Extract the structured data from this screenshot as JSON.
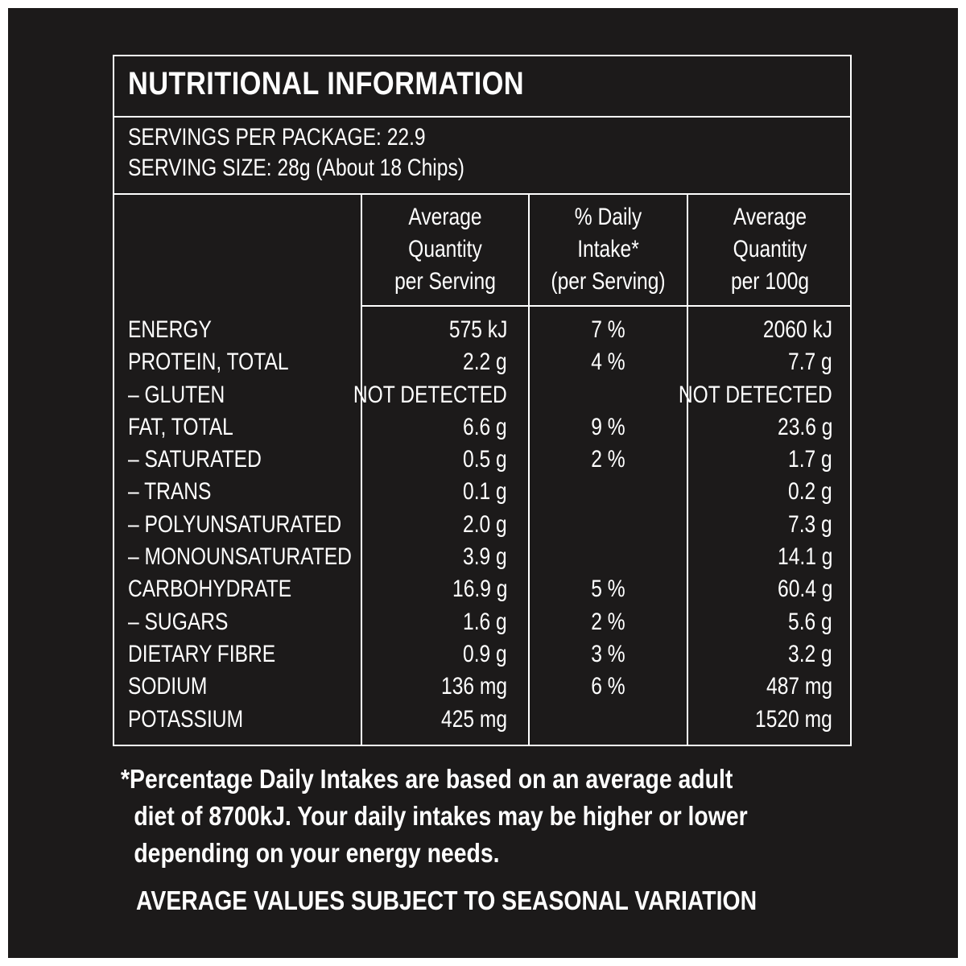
{
  "title": "NUTRITIONAL INFORMATION",
  "servings_per_package": "SERVINGS PER PACKAGE: 22.9",
  "serving_size": "SERVING SIZE: 28g (About 18 Chips)",
  "headers": {
    "per_serving": [
      "Average",
      "Quantity",
      "per Serving"
    ],
    "daily_intake": [
      "% Daily",
      "Intake*",
      "(per Serving)"
    ],
    "per_100g": [
      "Average",
      "Quantity",
      "per 100g"
    ]
  },
  "rows": [
    {
      "label": "ENERGY",
      "per_serving": "575 kJ",
      "daily_intake": "7 %",
      "per_100g": "2060 kJ"
    },
    {
      "label": "PROTEIN, TOTAL",
      "per_serving": "2.2 g",
      "daily_intake": "4 %",
      "per_100g": "7.7 g"
    },
    {
      "label": "– GLUTEN",
      "per_serving": "NOT DETECTED",
      "daily_intake": "",
      "per_100g": "NOT DETECTED"
    },
    {
      "label": "FAT, TOTAL",
      "per_serving": "6.6 g",
      "daily_intake": "9 %",
      "per_100g": "23.6 g"
    },
    {
      "label": "– SATURATED",
      "per_serving": "0.5 g",
      "daily_intake": "2 %",
      "per_100g": "1.7 g"
    },
    {
      "label": "– TRANS",
      "per_serving": "0.1 g",
      "daily_intake": "",
      "per_100g": "0.2 g"
    },
    {
      "label": "– POLYUNSATURATED",
      "per_serving": "2.0 g",
      "daily_intake": "",
      "per_100g": "7.3 g"
    },
    {
      "label": "– MONOUNSATURATED",
      "per_serving": "3.9 g",
      "daily_intake": "",
      "per_100g": "14.1 g"
    },
    {
      "label": "CARBOHYDRATE",
      "per_serving": "16.9 g",
      "daily_intake": "5 %",
      "per_100g": "60.4 g"
    },
    {
      "label": "– SUGARS",
      "per_serving": "1.6 g",
      "daily_intake": "2 %",
      "per_100g": "5.6 g"
    },
    {
      "label": "DIETARY FIBRE",
      "per_serving": "0.9 g",
      "daily_intake": "3 %",
      "per_100g": "3.2 g"
    },
    {
      "label": "SODIUM",
      "per_serving": "136 mg",
      "daily_intake": "6 %",
      "per_100g": "487 mg"
    },
    {
      "label": "POTASSIUM",
      "per_serving": "425 mg",
      "daily_intake": "",
      "per_100g": "1520 mg"
    }
  ],
  "footnote": [
    "*Percentage Daily Intakes are based on an average adult",
    "diet of 8700kJ. Your daily intakes may be higher or lower",
    "depending on your energy needs."
  ],
  "seasonal_note": "AVERAGE VALUES SUBJECT TO SEASONAL VARIATION",
  "colors": {
    "background": "#1c1a1a",
    "text": "#ffffff",
    "border": "#ffffff",
    "frame": "#ffffff"
  }
}
